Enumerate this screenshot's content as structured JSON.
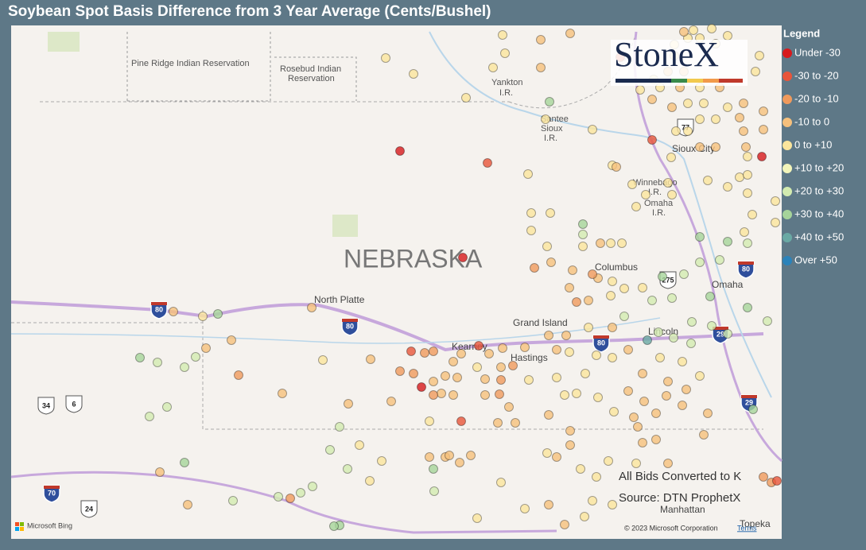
{
  "title": "Soybean Spot Basis Difference from 3 Year Average (Cents/Bushel)",
  "logo": "StoneX",
  "legend": {
    "title": "Legend",
    "items": [
      {
        "label": "Under -30",
        "color": "#d7191c"
      },
      {
        "label": "-30 to -20",
        "color": "#e8553a"
      },
      {
        "label": "-20 to -10",
        "color": "#f09a5c"
      },
      {
        "label": "-10 to 0",
        "color": "#f6c07c"
      },
      {
        "label": "0 to +10",
        "color": "#fbe59c"
      },
      {
        "label": "+10 to +20",
        "color": "#f3f5ba"
      },
      {
        "label": "+20 to +30",
        "color": "#d3ebb0"
      },
      {
        "label": "+30 to +40",
        "color": "#a6d49a"
      },
      {
        "label": "+40 to +50",
        "color": "#6aa9a4"
      },
      {
        "label": "Over +50",
        "color": "#2b83ba"
      }
    ]
  },
  "map": {
    "state": "NEBRASKA",
    "labels": [
      "Pine Ridge Indian Reservation",
      "Rosebud Indian",
      "Reservation",
      "Yankton",
      "I.R.",
      "Santee",
      "Sioux",
      "I.R.",
      "Winnebago",
      "I.R.",
      "Omaha",
      "I.R.",
      "Sioux City",
      "North Platte",
      "Columbus",
      "Grand Island",
      "Kearney",
      "Hastings",
      "Lincoln",
      "Omaha",
      "Manhattan",
      "Topeka"
    ],
    "shields": [
      "80",
      "80",
      "80",
      "34",
      "6",
      "70",
      "24",
      "29",
      "29",
      "275",
      "77",
      "80"
    ]
  },
  "notes": [
    "All Bids Converted to K",
    "Source: DTN ProphetX"
  ],
  "attribution": {
    "provider": "Microsoft Bing",
    "copyright": "© 2023 Microsoft Corporation",
    "terms": "Terms"
  }
}
